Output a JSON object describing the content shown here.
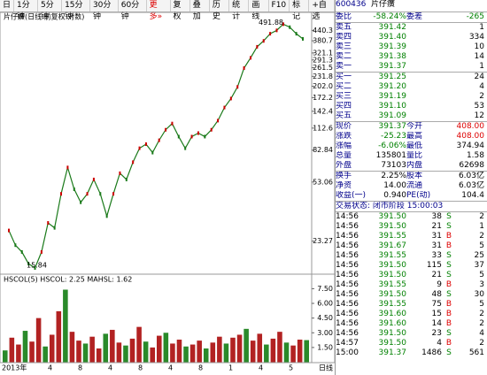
{
  "toolbar": {
    "tabs": [
      "日",
      "1分钟",
      "5分钟",
      "15分钟",
      "30分钟",
      "60分钟",
      "更多»"
    ],
    "tools": [
      "复权",
      "叠加",
      "历史",
      "统计",
      "画线",
      "F10",
      "标记",
      "+自选"
    ]
  },
  "chart_data": [
    {
      "type": "line",
      "title": "片仔癀(日线 前复权 对数)",
      "color": "#1a7a1a",
      "log": true,
      "values": [
        27,
        22,
        20,
        17,
        16,
        20,
        30,
        28,
        45,
        65,
        48,
        40,
        45,
        55,
        45,
        33,
        45,
        60,
        55,
        70,
        85,
        90,
        80,
        95,
        110,
        120,
        100,
        85,
        100,
        105,
        100,
        110,
        125,
        150,
        170,
        200,
        260,
        300,
        350,
        380,
        420,
        440,
        480,
        460,
        420,
        391
      ],
      "ylim": [
        16,
        500
      ],
      "yticks": [
        440.3,
        380.7,
        321.1,
        291.3,
        261.5,
        231.8,
        {
          "value": 202,
          "label": "202.0"
        },
        172.2,
        142.4,
        112.6,
        82.84,
        53.06,
        23.27
      ],
      "high": 491.88,
      "low": 15.84
    },
    {
      "type": "bar",
      "title": "HSCOL(5) HSCOL: 2.25 MAHSL: 1.62",
      "color": "#b22222",
      "values": [
        1.2,
        2.5,
        1.8,
        3.2,
        2.1,
        4.5,
        1.6,
        2.8,
        5.2,
        7.4,
        3.1,
        2.2,
        1.9,
        2.6,
        1.4,
        2.9,
        3.3,
        2.0,
        1.7,
        2.4,
        3.6,
        2.1,
        1.5,
        2.7,
        3.0,
        1.9,
        2.3,
        1.6,
        1.8,
        2.2,
        1.4,
        2.0,
        2.6,
        1.9,
        2.5,
        2.8,
        3.4,
        2.2,
        2.9,
        1.8,
        2.4,
        3.1,
        2.0,
        1.7,
        2.3,
        2.25
      ],
      "ylim": [
        0,
        8.8
      ],
      "yticks": [
        {
          "value": 7.5,
          "label": "7.50"
        },
        {
          "value": 6,
          "label": "6.00"
        },
        {
          "value": 4.5,
          "label": "4.50"
        },
        {
          "value": 3,
          "label": "3.00"
        },
        {
          "value": 1.5,
          "label": "1.50"
        }
      ]
    }
  ],
  "timeline": {
    "labels": [
      "2013年",
      "4",
      "8",
      "4",
      "8",
      "4",
      "8",
      "1",
      "4",
      "5"
    ],
    "period": "日线"
  },
  "quote": {
    "code": "600436",
    "name": "片仔癀",
    "wb": [
      "委比",
      "-58.24%",
      "委差",
      "-265"
    ],
    "asks": [
      [
        "卖五",
        "391.42",
        "1"
      ],
      [
        "卖四",
        "391.40",
        "334"
      ],
      [
        "卖三",
        "391.39",
        "10"
      ],
      [
        "卖二",
        "391.38",
        "14"
      ],
      [
        "卖一",
        "391.37",
        "1"
      ]
    ],
    "bids": [
      [
        "买一",
        "391.25",
        "24"
      ],
      [
        "买二",
        "391.20",
        "4"
      ],
      [
        "买三",
        "391.19",
        "2"
      ],
      [
        "买四",
        "391.10",
        "53"
      ],
      [
        "买五",
        "391.09",
        "12"
      ]
    ],
    "stats": [
      [
        "现价",
        "391.37",
        "今开",
        "408.00"
      ],
      [
        "涨跌",
        "-25.23",
        "最高",
        "408.00"
      ],
      [
        "涨幅",
        "-6.06%",
        "最低",
        "374.94"
      ],
      [
        "总量",
        "135801",
        "量比",
        "1.58"
      ],
      [
        "外盘",
        "73103",
        "内盘",
        "62698"
      ],
      [
        "换手",
        "2.25%",
        "股本",
        "6.03亿"
      ],
      [
        "净资",
        "14.00",
        "流通",
        "6.03亿"
      ],
      [
        "收益(一)",
        "0.940",
        "PE(动)",
        "104.4"
      ]
    ],
    "status": "交易状态: 闭市阶段 15:00:03",
    "trades": [
      [
        "14:56",
        "391.50",
        "38",
        "S",
        "2"
      ],
      [
        "14:56",
        "391.50",
        "21",
        "S",
        "1"
      ],
      [
        "14:56",
        "391.55",
        "31",
        "B",
        "2"
      ],
      [
        "14:56",
        "391.67",
        "31",
        "B",
        "5"
      ],
      [
        "14:56",
        "391.55",
        "33",
        "S",
        "25"
      ],
      [
        "14:56",
        "391.50",
        "115",
        "S",
        "37"
      ],
      [
        "14:56",
        "391.50",
        "21",
        "S",
        "5"
      ],
      [
        "14:56",
        "391.55",
        "9",
        "B",
        "3"
      ],
      [
        "14:56",
        "391.50",
        "48",
        "S",
        "30"
      ],
      [
        "14:56",
        "391.55",
        "75",
        "B",
        "5"
      ],
      [
        "14:56",
        "391.60",
        "15",
        "B",
        "2"
      ],
      [
        "14:56",
        "391.60",
        "14",
        "B",
        "2"
      ],
      [
        "14:56",
        "391.50",
        "23",
        "S",
        "4"
      ],
      [
        "14:57",
        "391.50",
        "4",
        "B",
        "2"
      ],
      [
        "15:00",
        "391.37",
        "1486",
        "S",
        "561"
      ]
    ]
  }
}
